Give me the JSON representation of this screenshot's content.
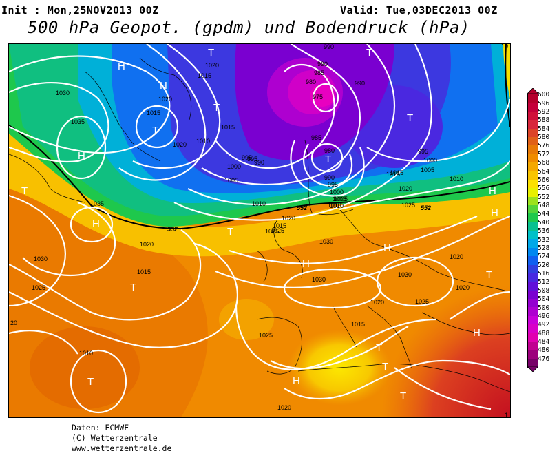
{
  "header": {
    "init": "Init : Mon,25NOV2013 00Z",
    "valid": "Valid: Tue,03DEC2013 00Z",
    "title": "500 hPa Geopot. (gpdm) und Bodendruck (hPa)"
  },
  "footer": {
    "source": "Daten: ECMWF",
    "copyright": "(C) Wetterzentrale",
    "url": "www.wetterzentrale.de"
  },
  "colorbar": {
    "labels": [
      "600",
      "596",
      "592",
      "588",
      "584",
      "580",
      "576",
      "572",
      "568",
      "564",
      "560",
      "556",
      "552",
      "548",
      "544",
      "540",
      "536",
      "532",
      "528",
      "524",
      "520",
      "516",
      "512",
      "508",
      "504",
      "500",
      "496",
      "492",
      "488",
      "484",
      "480",
      "476"
    ],
    "colors": [
      "#b5002c",
      "#c4003a",
      "#d0103a",
      "#d8283c",
      "#dc4428",
      "#e06018",
      "#e87a08",
      "#f08c00",
      "#f4a800",
      "#f8c400",
      "#fce000",
      "#e8f000",
      "#9ce21c",
      "#54d43a",
      "#1ec84c",
      "#08c090",
      "#00c0c8",
      "#00a8e8",
      "#0088f0",
      "#1060f0",
      "#3040e0",
      "#4828e0",
      "#6010d8",
      "#7a00d0",
      "#9400d0",
      "#ae00d0",
      "#c800d8",
      "#d800c8",
      "#e000b0",
      "#c00090",
      "#9c007c",
      "#780068"
    ]
  },
  "map": {
    "pressure_labels": [
      {
        "text": "1020"
      },
      {
        "text": "1015"
      },
      {
        "text": "1030"
      },
      {
        "text": "1035"
      },
      {
        "text": "1020"
      },
      {
        "text": "1015"
      },
      {
        "text": "1010"
      },
      {
        "text": "1015"
      },
      {
        "text": "1020"
      },
      {
        "text": "995"
      },
      {
        "text": "1000"
      },
      {
        "text": "1005"
      },
      {
        "text": "990"
      },
      {
        "text": "985"
      },
      {
        "text": "980"
      },
      {
        "text": "975"
      },
      {
        "text": "990"
      },
      {
        "text": "985"
      },
      {
        "text": "980"
      },
      {
        "text": "990"
      },
      {
        "text": "995"
      },
      {
        "text": "1000"
      },
      {
        "text": "1005"
      },
      {
        "text": "1010"
      },
      {
        "text": "990"
      },
      {
        "text": "995"
      },
      {
        "text": "1000"
      },
      {
        "text": "1005"
      },
      {
        "text": "1010"
      },
      {
        "text": "1015"
      },
      {
        "text": "1020"
      },
      {
        "text": "1025"
      },
      {
        "text": "1010"
      },
      {
        "text": "1035"
      },
      {
        "text": "1030"
      },
      {
        "text": "1020"
      },
      {
        "text": "1015"
      },
      {
        "text": "1025"
      },
      {
        "text": "1030"
      },
      {
        "text": "1030"
      },
      {
        "text": "1030"
      },
      {
        "text": "1020"
      },
      {
        "text": "1025"
      },
      {
        "text": "1020"
      },
      {
        "text": "1015"
      },
      {
        "text": "1025"
      },
      {
        "text": "1010"
      },
      {
        "text": "1020"
      },
      {
        "text": "1020"
      },
      {
        "text": "20"
      },
      {
        "text": "1015"
      },
      {
        "text": "1025"
      },
      {
        "text": "995"
      },
      {
        "text": "990"
      },
      {
        "text": "1015"
      },
      {
        "text": "1020"
      },
      {
        "text": "1025"
      },
      {
        "text": "1005"
      },
      {
        "text": "1010"
      },
      {
        "text": "1"
      },
      {
        "text": "10"
      }
    ],
    "geopot_labels": [
      {
        "text": "552"
      },
      {
        "text": "552"
      },
      {
        "text": "552"
      }
    ],
    "pressure_centers": [
      {
        "text": "H"
      },
      {
        "text": "H"
      },
      {
        "text": "T"
      },
      {
        "text": "T"
      },
      {
        "text": "T"
      },
      {
        "text": "H"
      },
      {
        "text": "T"
      },
      {
        "text": "T"
      },
      {
        "text": "T"
      },
      {
        "text": "T"
      },
      {
        "text": "H"
      },
      {
        "text": "T"
      },
      {
        "text": "T"
      },
      {
        "text": "H"
      },
      {
        "text": "H"
      },
      {
        "text": "H"
      },
      {
        "text": "T"
      },
      {
        "text": "T"
      },
      {
        "text": "H"
      },
      {
        "text": "T"
      },
      {
        "text": "H"
      },
      {
        "text": "T"
      },
      {
        "text": "T"
      },
      {
        "text": "H"
      }
    ]
  }
}
